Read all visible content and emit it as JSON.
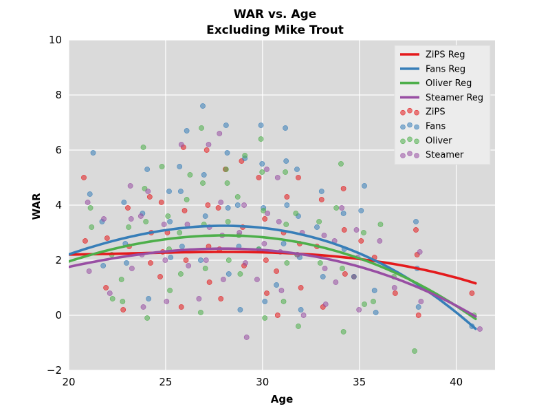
{
  "chart_data": {
    "type": "scatter",
    "title": "WAR vs. Age",
    "subtitle": "Excluding Mike Trout",
    "xlabel": "Age",
    "ylabel": "WAR",
    "xlim": [
      20,
      42
    ],
    "ylim": [
      -2,
      10
    ],
    "xticks": [
      20,
      25,
      30,
      35,
      40
    ],
    "yticks": [
      -2,
      0,
      2,
      4,
      6,
      8,
      10
    ],
    "grid": true,
    "background": "#dadada",
    "legend_position": "top-right",
    "regression_lines": [
      {
        "name": "ZiPS Reg",
        "color": "#e41a1c",
        "coeffs": [
          2.3,
          0.0,
          -0.0035,
          -0.00025
        ]
      },
      {
        "name": "Fans Reg",
        "color": "#377eb8",
        "coeffs": [
          3.25,
          0.0,
          -0.0185,
          -0.00028
        ]
      },
      {
        "name": "Oliver Reg",
        "color": "#4daf4a",
        "coeffs": [
          2.9,
          0.0,
          -0.016,
          -0.00015
        ]
      },
      {
        "name": "Steamer Reg",
        "color": "#984ea3",
        "coeffs": [
          2.42,
          0.0,
          -0.012,
          -0.0002
        ]
      }
    ],
    "scatter_series": [
      {
        "name": "ZiPS",
        "color": "#e41a1c",
        "points": [
          [
            21,
            5.0
          ],
          [
            21,
            2.7
          ],
          [
            22,
            1.0
          ],
          [
            22,
            2.8
          ],
          [
            23,
            3.9
          ],
          [
            23,
            0.2
          ],
          [
            23,
            2.5
          ],
          [
            24,
            4.3
          ],
          [
            24,
            1.9
          ],
          [
            24,
            3.0
          ],
          [
            25,
            3.0
          ],
          [
            25,
            1.4
          ],
          [
            25,
            4.1
          ],
          [
            25,
            2.3
          ],
          [
            26,
            6.1
          ],
          [
            26,
            3.8
          ],
          [
            26,
            2.0
          ],
          [
            26,
            0.3
          ],
          [
            27,
            6.0
          ],
          [
            27,
            4.0
          ],
          [
            27,
            2.5
          ],
          [
            27,
            1.2
          ],
          [
            28,
            5.3
          ],
          [
            28,
            3.9
          ],
          [
            28,
            2.4
          ],
          [
            28,
            0.6
          ],
          [
            29,
            5.6
          ],
          [
            29,
            3.2
          ],
          [
            29,
            1.8
          ],
          [
            30,
            5.0
          ],
          [
            30,
            3.5
          ],
          [
            30,
            2.0
          ],
          [
            30,
            0.8
          ],
          [
            31,
            4.3
          ],
          [
            31,
            3.0
          ],
          [
            31,
            1.6
          ],
          [
            31,
            0.0
          ],
          [
            32,
            5.0
          ],
          [
            32,
            2.6
          ],
          [
            32,
            1.0
          ],
          [
            33,
            4.2
          ],
          [
            33,
            2.5
          ],
          [
            33,
            0.3
          ],
          [
            34,
            4.6
          ],
          [
            34,
            3.1
          ],
          [
            34,
            1.5
          ],
          [
            35,
            2.7
          ],
          [
            35,
            1.4
          ],
          [
            36,
            2.1
          ],
          [
            37,
            0.8
          ],
          [
            38,
            3.1
          ],
          [
            38,
            2.2
          ],
          [
            38,
            0.0
          ],
          [
            41,
            0.8
          ]
        ]
      },
      {
        "name": "Fans",
        "color": "#377eb8",
        "points": [
          [
            21,
            5.9
          ],
          [
            21,
            4.4
          ],
          [
            22,
            3.4
          ],
          [
            22,
            1.8
          ],
          [
            23,
            4.1
          ],
          [
            23,
            2.6
          ],
          [
            23,
            1.9
          ],
          [
            24,
            5.3
          ],
          [
            24,
            3.7
          ],
          [
            24,
            0.6
          ],
          [
            25,
            4.5
          ],
          [
            25,
            3.4
          ],
          [
            25,
            2.1
          ],
          [
            26,
            6.7
          ],
          [
            26,
            5.4
          ],
          [
            26,
            4.5
          ],
          [
            26,
            2.5
          ],
          [
            27,
            7.6
          ],
          [
            27,
            5.1
          ],
          [
            27,
            3.6
          ],
          [
            27,
            2.0
          ],
          [
            28,
            6.9
          ],
          [
            28,
            5.9
          ],
          [
            28,
            3.9
          ],
          [
            28,
            1.5
          ],
          [
            29,
            5.7
          ],
          [
            29,
            4.0
          ],
          [
            29,
            2.5
          ],
          [
            29,
            0.2
          ],
          [
            30,
            6.9
          ],
          [
            30,
            5.5
          ],
          [
            30,
            3.9
          ],
          [
            30,
            2.4
          ],
          [
            30,
            0.5
          ],
          [
            31,
            6.8
          ],
          [
            31,
            5.6
          ],
          [
            31,
            4.0
          ],
          [
            31,
            2.6
          ],
          [
            31,
            1.1
          ],
          [
            32,
            5.3
          ],
          [
            32,
            3.6
          ],
          [
            32,
            2.1
          ],
          [
            32,
            0.2
          ],
          [
            33,
            4.5
          ],
          [
            33,
            3.2
          ],
          [
            33,
            1.4
          ],
          [
            34,
            3.7
          ],
          [
            34,
            2.4
          ],
          [
            35,
            4.7
          ],
          [
            35,
            3.8
          ],
          [
            35,
            1.4
          ],
          [
            36,
            0.9
          ],
          [
            36,
            0.1
          ],
          [
            38,
            3.4
          ],
          [
            38,
            1.7
          ],
          [
            38,
            0.3
          ],
          [
            41,
            -0.4
          ]
        ]
      },
      {
        "name": "Oliver",
        "color": "#4daf4a",
        "points": [
          [
            21,
            3.9
          ],
          [
            21,
            3.2
          ],
          [
            22,
            2.2
          ],
          [
            22,
            0.6
          ],
          [
            23,
            3.2
          ],
          [
            23,
            1.3
          ],
          [
            23,
            0.5
          ],
          [
            24,
            6.1
          ],
          [
            24,
            4.6
          ],
          [
            24,
            3.4
          ],
          [
            24,
            -0.1
          ],
          [
            25,
            5.4
          ],
          [
            25,
            3.6
          ],
          [
            25,
            2.4
          ],
          [
            25,
            0.9
          ],
          [
            26,
            5.1
          ],
          [
            26,
            4.2
          ],
          [
            26,
            3.0
          ],
          [
            26,
            1.5
          ],
          [
            27,
            6.8
          ],
          [
            27,
            4.8
          ],
          [
            27,
            3.3
          ],
          [
            27,
            1.7
          ],
          [
            27,
            0.1
          ],
          [
            28,
            5.3
          ],
          [
            28,
            4.8
          ],
          [
            28,
            3.4
          ],
          [
            28,
            2.0
          ],
          [
            29,
            5.8
          ],
          [
            29,
            4.3
          ],
          [
            29,
            2.9
          ],
          [
            29,
            1.5
          ],
          [
            30,
            6.4
          ],
          [
            30,
            5.2
          ],
          [
            30,
            3.8
          ],
          [
            30,
            2.4
          ],
          [
            30,
            -0.1
          ],
          [
            31,
            5.2
          ],
          [
            31,
            3.3
          ],
          [
            31,
            1.9
          ],
          [
            31,
            0.5
          ],
          [
            32,
            3.7
          ],
          [
            32,
            2.2
          ],
          [
            32,
            -0.4
          ],
          [
            33,
            3.4
          ],
          [
            33,
            1.9
          ],
          [
            34,
            5.5
          ],
          [
            34,
            3.9
          ],
          [
            34,
            1.7
          ],
          [
            34,
            -0.6
          ],
          [
            35,
            3.0
          ],
          [
            35,
            0.4
          ],
          [
            36,
            3.3
          ],
          [
            36,
            0.5
          ],
          [
            37,
            1.4
          ],
          [
            38,
            -1.3
          ],
          [
            41,
            0.0
          ]
        ]
      },
      {
        "name": "Steamer",
        "color": "#984ea3",
        "points": [
          [
            21,
            4.1
          ],
          [
            21,
            1.6
          ],
          [
            22,
            3.5
          ],
          [
            22,
            0.8
          ],
          [
            23,
            4.7
          ],
          [
            23,
            3.5
          ],
          [
            23,
            1.7
          ],
          [
            24,
            4.5
          ],
          [
            24,
            3.6
          ],
          [
            24,
            2.2
          ],
          [
            24,
            0.3
          ],
          [
            25,
            3.3
          ],
          [
            25,
            2.0
          ],
          [
            25,
            0.5
          ],
          [
            26,
            6.2
          ],
          [
            26,
            3.3
          ],
          [
            26,
            1.8
          ],
          [
            27,
            6.2
          ],
          [
            27,
            3.2
          ],
          [
            27,
            2.0
          ],
          [
            27,
            0.6
          ],
          [
            28,
            6.6
          ],
          [
            28,
            4.1
          ],
          [
            28,
            2.9
          ],
          [
            28,
            1.3
          ],
          [
            29,
            4.0
          ],
          [
            29,
            3.0
          ],
          [
            29,
            1.9
          ],
          [
            29,
            -0.8
          ],
          [
            30,
            5.3
          ],
          [
            30,
            3.7
          ],
          [
            30,
            2.6
          ],
          [
            30,
            1.3
          ],
          [
            31,
            5.0
          ],
          [
            31,
            3.4
          ],
          [
            31,
            2.3
          ],
          [
            31,
            0.9
          ],
          [
            32,
            3.0
          ],
          [
            32,
            2.2
          ],
          [
            32,
            0.0
          ],
          [
            33,
            2.9
          ],
          [
            33,
            1.7
          ],
          [
            33,
            0.4
          ],
          [
            34,
            3.9
          ],
          [
            34,
            2.7
          ],
          [
            34,
            1.2
          ],
          [
            35,
            3.1
          ],
          [
            35,
            2.1
          ],
          [
            35,
            0.2
          ],
          [
            36,
            2.7
          ],
          [
            37,
            1.0
          ],
          [
            38,
            2.3
          ],
          [
            38,
            0.5
          ],
          [
            41,
            -0.5
          ]
        ]
      }
    ]
  }
}
